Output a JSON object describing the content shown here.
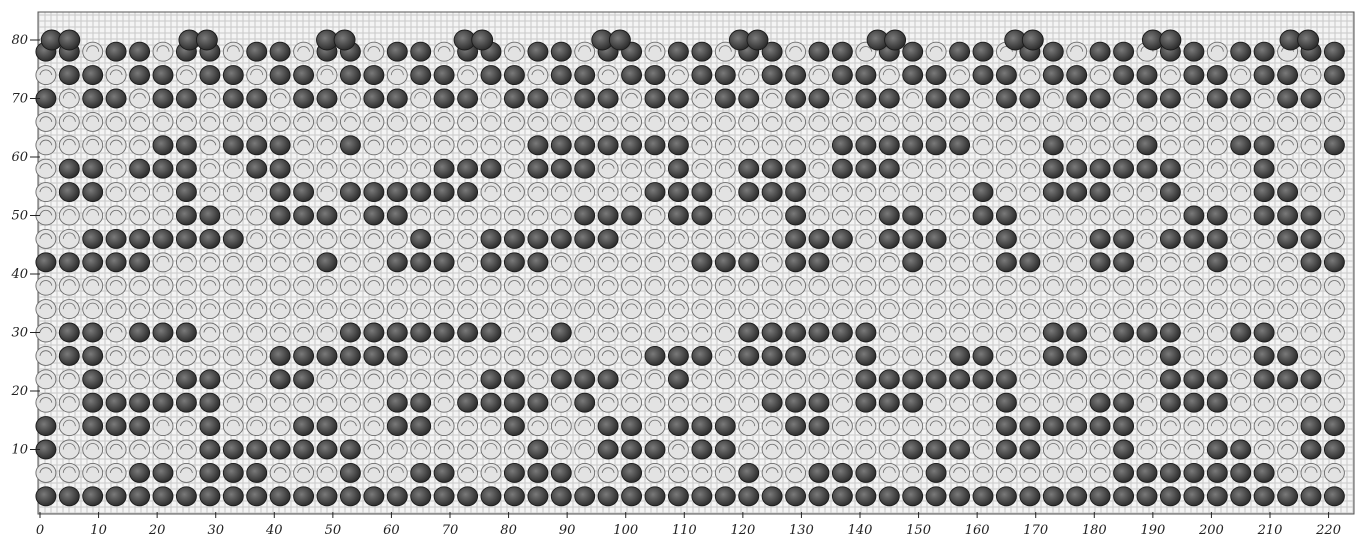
{
  "figure": {
    "description_type": "knitted pattern grid plate",
    "columns": 224,
    "rows": 84
  },
  "x_axis": {
    "tick_labels": [
      "0",
      "10",
      "20",
      "30",
      "40",
      "50",
      "60",
      "70",
      "80",
      "90",
      "100",
      "110",
      "120",
      "130",
      "140",
      "150",
      "160",
      "170",
      "180",
      "190",
      "200",
      "210",
      "220"
    ],
    "tick_values": [
      0,
      10,
      20,
      30,
      40,
      50,
      60,
      70,
      80,
      90,
      100,
      110,
      120,
      130,
      140,
      150,
      160,
      170,
      180,
      190,
      200,
      210,
      220
    ]
  },
  "y_axis": {
    "tick_labels": [
      "10",
      "20",
      "30",
      "40",
      "50",
      "60",
      "70",
      "80"
    ],
    "tick_values": [
      10,
      20,
      30,
      40,
      50,
      60,
      70,
      80
    ]
  },
  "colors": {
    "background": "#ffffff",
    "hatch": "#c9c9c9",
    "stitch_light": "#e3e3e3",
    "stitch_light_edge": "#6c6c6c",
    "stitch_dark": "#4a4a4a",
    "stitch_dark_edge": "#1a1a1a",
    "border": "#555555"
  }
}
